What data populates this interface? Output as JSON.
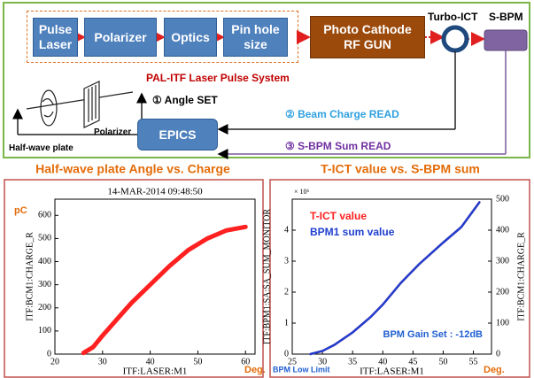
{
  "diagram": {
    "boxes": [
      "Pulse Laser",
      "Polarizer",
      "Optics",
      "Pin hole size",
      "Photo Cathode RF GUN",
      "EPICS"
    ],
    "labels": [
      "Turbo-ICT",
      "S-BPM",
      "PAL-ITF Laser Pulse System",
      "① Angle SET",
      "② Beam Charge READ",
      "③ S-BPM Sum READ",
      "Half-wave plate",
      "Polarizer"
    ]
  },
  "chart_data": [
    {
      "type": "line",
      "title": "Half-wave plate Angle vs. Charge",
      "title_color": "#e36c09",
      "xlabel": "ITF:LASER:M1",
      "ylabel": "ITF:BCM1:CHARGE_R",
      "x": [
        26,
        28,
        30,
        33,
        36,
        40,
        44,
        48,
        52,
        56,
        60
      ],
      "series": [
        {
          "name": null,
          "color": "#ff2020",
          "values": [
            5,
            30,
            80,
            150,
            220,
            300,
            380,
            450,
            500,
            535,
            550
          ]
        }
      ],
      "xlim": [
        20,
        62
      ],
      "xticks": [
        20,
        30,
        40,
        50,
        60
      ],
      "ylim": [
        0,
        670
      ],
      "yticks": [
        0,
        100,
        200,
        300,
        400,
        500,
        600
      ],
      "annotations": [
        {
          "text": "14-MAR-2014 09:48:50",
          "color": "#000000"
        },
        {
          "text": "pC",
          "color": "#e36c09"
        },
        {
          "text": "Deg.",
          "color": "#e36c09"
        }
      ]
    },
    {
      "type": "line",
      "title": "T-ICT value vs. S-BPM sum",
      "title_color": "#e36c09",
      "xlabel": "ITF:LASER:M1",
      "ylabel": "ITF:BPM1:SA:SA_SUM_MONITOR",
      "y2label": "ITF:BCM1:CHARGE_R",
      "x": [
        28,
        30,
        32,
        35,
        38,
        40,
        43,
        46,
        50,
        53,
        56
      ],
      "series": [
        {
          "name": "T-ICT value",
          "color": "#ff2020",
          "axis": "y2",
          "values": [
            0,
            10,
            30,
            70,
            120,
            160,
            230,
            290,
            360,
            410,
            490
          ]
        },
        {
          "name": "BPM1 sum value",
          "color": "#1f3fd0",
          "values": [
            0,
            0.1,
            0.3,
            0.7,
            1.2,
            1.6,
            2.3,
            2.9,
            3.6,
            4.1,
            4.9
          ]
        }
      ],
      "xlim": [
        25,
        58
      ],
      "xticks": [
        25,
        30,
        35,
        40,
        45,
        50,
        55
      ],
      "ylim": [
        0,
        5
      ],
      "yticks": [
        0,
        1,
        2,
        3,
        4
      ],
      "y2lim": [
        0,
        500
      ],
      "y2ticks": [
        0,
        100,
        200,
        300,
        400,
        500
      ],
      "annotations": [
        {
          "text": "× 10⁶",
          "color": "#000000"
        },
        {
          "text": "BPM Gain Set : -12dB",
          "color": "#1f5fd0"
        },
        {
          "text": "BPM Low Limit",
          "color": "#1f5fd0"
        },
        {
          "text": "Deg.",
          "color": "#e36c09"
        }
      ]
    }
  ]
}
